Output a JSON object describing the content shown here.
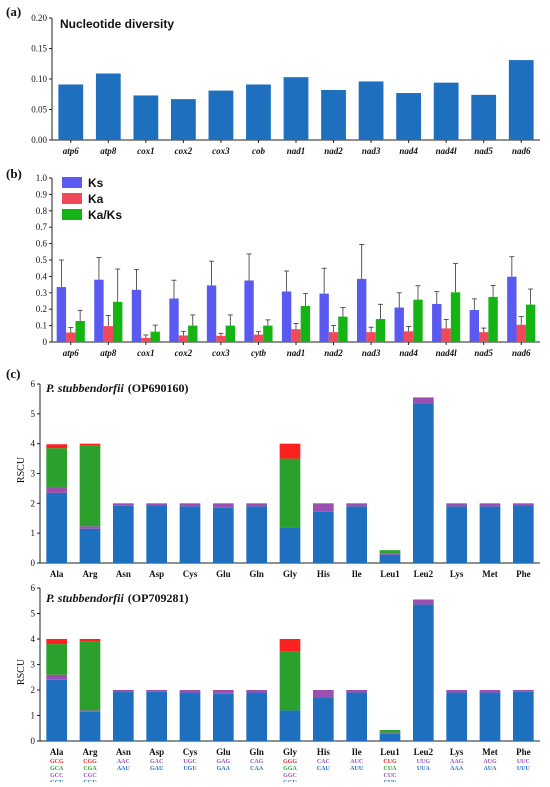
{
  "chart_data": [
    {
      "type": "bar",
      "panel_label": "(a)",
      "title": "Nucleotide diversity",
      "categories": [
        "atp6",
        "atp8",
        "cox1",
        "cox2",
        "cox3",
        "cob",
        "nad1",
        "nad2",
        "nad3",
        "nad4",
        "nad4l",
        "nad5",
        "nad6"
      ],
      "values": [
        0.091,
        0.109,
        0.073,
        0.067,
        0.081,
        0.091,
        0.103,
        0.082,
        0.096,
        0.077,
        0.094,
        0.074,
        0.131
      ],
      "ylim": [
        0,
        0.2
      ],
      "yticks": [
        "0.00",
        "0.05",
        "0.10",
        "0.15",
        "0.20"
      ],
      "ytick_values": [
        0,
        0.05,
        0.1,
        0.15,
        0.2
      ],
      "color": "#1f6fbf"
    },
    {
      "type": "bar",
      "panel_label": "(b)",
      "categories": [
        "atp6",
        "atp8",
        "cox1",
        "cox2",
        "cox3",
        "cytb",
        "nad1",
        "nad2",
        "nad3",
        "nad4",
        "nad4l",
        "nad5",
        "nad6"
      ],
      "series": [
        {
          "name": "Ks",
          "color": "#5a5af0",
          "values": [
            0.335,
            0.38,
            0.318,
            0.265,
            0.345,
            0.375,
            0.308,
            0.295,
            0.385,
            0.21,
            0.232,
            0.195,
            0.398
          ],
          "errors": [
            0.165,
            0.135,
            0.125,
            0.112,
            0.148,
            0.162,
            0.125,
            0.155,
            0.21,
            0.09,
            0.075,
            0.068,
            0.122
          ]
        },
        {
          "name": "Ka",
          "color": "#f04a5a",
          "values": [
            0.058,
            0.097,
            0.025,
            0.04,
            0.038,
            0.045,
            0.078,
            0.06,
            0.06,
            0.065,
            0.083,
            0.06,
            0.105
          ],
          "errors": [
            0.03,
            0.065,
            0.018,
            0.025,
            0.015,
            0.018,
            0.035,
            0.04,
            0.03,
            0.03,
            0.055,
            0.025,
            0.05
          ]
        },
        {
          "name": "Ka/Ks",
          "color": "#14b414",
          "values": [
            0.128,
            0.245,
            0.063,
            0.1,
            0.1,
            0.1,
            0.22,
            0.155,
            0.14,
            0.258,
            0.303,
            0.275,
            0.228
          ],
          "errors": [
            0.065,
            0.2,
            0.04,
            0.065,
            0.065,
            0.035,
            0.075,
            0.055,
            0.09,
            0.085,
            0.175,
            0.07,
            0.095
          ]
        }
      ],
      "ylim": [
        0,
        1.0
      ],
      "yticks": [
        "0",
        "0.1",
        "0.2",
        "0.3",
        "0.4",
        "0.5",
        "0.6",
        "0.7",
        "0.8",
        "0.9",
        "1.0"
      ],
      "ytick_values": [
        0,
        0.1,
        0.2,
        0.3,
        0.4,
        0.5,
        0.6,
        0.7,
        0.8,
        0.9,
        1.0
      ]
    },
    {
      "type": "bar",
      "stacked": true,
      "panel_label": "(c)",
      "species": "P. stubbendorfii",
      "accession": "(OP690160)",
      "ylabel": "RSCU",
      "categories": [
        "Ala",
        "Arg",
        "Asn",
        "Asp",
        "Cys",
        "Glu",
        "Gln",
        "Gly",
        "His",
        "Ile",
        "Leu1",
        "Leu2",
        "Lys",
        "Met",
        "Phe"
      ],
      "stacks": [
        [
          2.35,
          0.2,
          1.3,
          0.13
        ],
        [
          1.15,
          0.08,
          2.7,
          0.07
        ],
        [
          1.92,
          0.08
        ],
        [
          1.93,
          0.07
        ],
        [
          1.9,
          0.1
        ],
        [
          1.85,
          0.15
        ],
        [
          1.9,
          0.1
        ],
        [
          1.2,
          0.0,
          2.3,
          0.5
        ],
        [
          1.72,
          0.28
        ],
        [
          1.9,
          0.1
        ],
        [
          0.28,
          0.05,
          0.1,
          0.0
        ],
        [
          5.35,
          0.2
        ],
        [
          1.9,
          0.1
        ],
        [
          1.9,
          0.1
        ],
        [
          1.93,
          0.07
        ]
      ],
      "stack_colors": [
        "#1f6fbf",
        "#9b4fb0",
        "#2ca02c",
        "#ff2020"
      ],
      "ylim": [
        0,
        6
      ],
      "yticks": [
        "0",
        "1",
        "2",
        "3",
        "4",
        "5",
        "6"
      ],
      "ytick_values": [
        0,
        1,
        2,
        3,
        4,
        5,
        6
      ]
    },
    {
      "type": "bar",
      "stacked": true,
      "species": "P. stubbendorfii",
      "accession": "(OP709281)",
      "ylabel": "RSCU",
      "categories": [
        "Ala",
        "Arg",
        "Asn",
        "Asp",
        "Cys",
        "Glu",
        "Gln",
        "Gly",
        "His",
        "Ile",
        "Leu1",
        "Leu2",
        "Lys",
        "Met",
        "Phe"
      ],
      "stacks": [
        [
          2.4,
          0.2,
          1.2,
          0.2
        ],
        [
          1.15,
          0.05,
          2.72,
          0.08
        ],
        [
          1.92,
          0.08
        ],
        [
          1.93,
          0.07
        ],
        [
          1.9,
          0.1
        ],
        [
          1.85,
          0.15
        ],
        [
          1.9,
          0.1
        ],
        [
          1.2,
          0.0,
          2.3,
          0.5
        ],
        [
          1.72,
          0.28
        ],
        [
          1.9,
          0.1
        ],
        [
          0.28,
          0.05,
          0.1,
          0.0
        ],
        [
          5.35,
          0.2
        ],
        [
          1.9,
          0.1
        ],
        [
          1.9,
          0.1
        ],
        [
          1.93,
          0.07
        ]
      ],
      "stack_colors": [
        "#1f6fbf",
        "#9b4fb0",
        "#2ca02c",
        "#ff2020"
      ],
      "codons": [
        [
          "GCG",
          "GCA",
          "GCC",
          "GCU"
        ],
        [
          "CGG",
          "CGA",
          "CGC",
          "CGU"
        ],
        [
          "AAC",
          "AAU"
        ],
        [
          "GAC",
          "GAU"
        ],
        [
          "UGC",
          "UGU"
        ],
        [
          "GAG",
          "GAA"
        ],
        [
          "CAG",
          "CAA"
        ],
        [
          "GGG",
          "GGA",
          "GGC",
          "GGU"
        ],
        [
          "CAC",
          "CAU"
        ],
        [
          "AUC",
          "AUU"
        ],
        [
          "CUG",
          "CUA",
          "CUC",
          "CUU"
        ],
        [
          "UUG",
          "UUA"
        ],
        [
          "AAG",
          "AAA"
        ],
        [
          "AUG",
          "AUA"
        ],
        [
          "UUC",
          "UUU"
        ]
      ],
      "codon_colors_4": [
        "#ff2020",
        "#2ca02c",
        "#9b4fb0",
        "#1f6fbf"
      ],
      "codon_colors_2": [
        "#9b4fb0",
        "#1f6fbf"
      ],
      "ylim": [
        0,
        6
      ],
      "yticks": [
        "0",
        "1",
        "2",
        "3",
        "4",
        "5",
        "6"
      ],
      "ytick_values": [
        0,
        1,
        2,
        3,
        4,
        5,
        6
      ]
    }
  ]
}
